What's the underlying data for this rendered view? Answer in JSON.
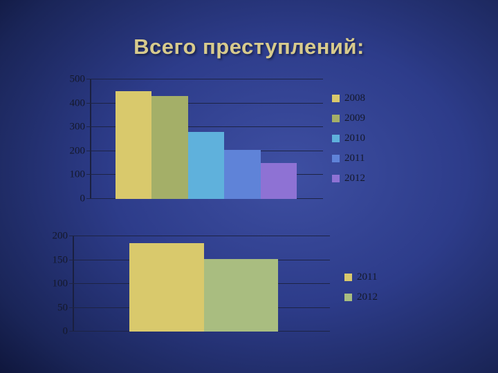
{
  "slide": {
    "title": "Всего преступлений:"
  },
  "chart_data": [
    {
      "type": "bar",
      "title": "",
      "categories": [
        "2008",
        "2009",
        "2010",
        "2011",
        "2012"
      ],
      "values": [
        450,
        430,
        280,
        205,
        150
      ],
      "bar_colors": [
        "#d9c96c",
        "#a4af68",
        "#5fb1dc",
        "#5f83d8",
        "#8e72d4"
      ],
      "ylim": [
        0,
        500
      ],
      "yticks": [
        0,
        100,
        200,
        300,
        400,
        500
      ],
      "grid": true,
      "legend": {
        "position": "right",
        "entries": [
          "2008",
          "2009",
          "2010",
          "2011",
          "2012"
        ]
      }
    },
    {
      "type": "bar",
      "title": "",
      "categories": [
        "2011",
        "2012"
      ],
      "values": [
        185,
        152
      ],
      "bar_colors": [
        "#d9c96c",
        "#a9bd80"
      ],
      "ylim": [
        0,
        200
      ],
      "yticks": [
        0,
        50,
        100,
        150,
        200
      ],
      "grid": true,
      "legend": {
        "position": "right",
        "entries": [
          "2011",
          "2012"
        ]
      }
    }
  ],
  "theme": {
    "background_center": "#3e4fa2",
    "background_edge": "#0a1030",
    "title_color": "#d8cb8d",
    "axis_text_color": "#14182a",
    "gridline_color": "#1d2344"
  }
}
